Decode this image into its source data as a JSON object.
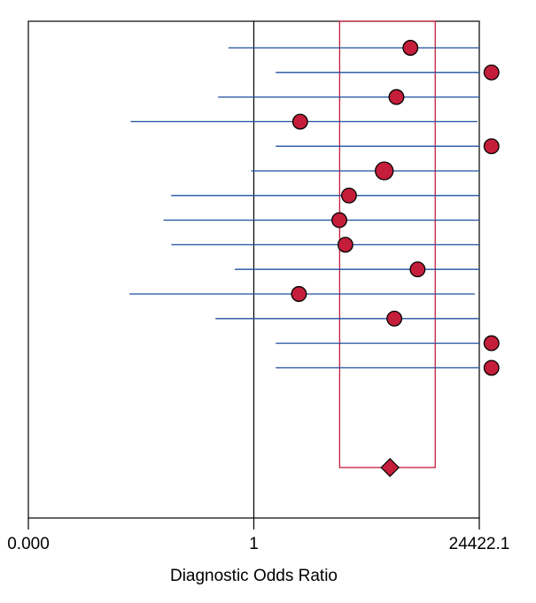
{
  "chart_data": {
    "type": "forest",
    "xlabel": "Diagnostic Odds Ratio",
    "x_scale": "log",
    "x_tick_labels": [
      "0.000",
      "1",
      "24422.1"
    ],
    "xlim_log10": [
      -4.3878,
      4.3878
    ],
    "reference_line_log10": 0,
    "studies": [
      {
        "estimate_log10": 3.047,
        "ci_log10": [
          -0.493,
          6.493
        ]
      },
      {
        "estimate_log10": 4.625,
        "ci_log10": [
          0.426,
          8.824
        ]
      },
      {
        "estimate_log10": 2.775,
        "ci_log10": [
          -0.697,
          6.182
        ]
      },
      {
        "estimate_log10": 0.902,
        "ci_log10": [
          -2.399,
          4.353
        ]
      },
      {
        "estimate_log10": 4.625,
        "ci_log10": [
          0.426,
          8.824
        ]
      },
      {
        "estimate_log10": 2.538,
        "ci_log10": [
          -0.051,
          5.098
        ]
      },
      {
        "estimate_log10": 1.852,
        "ci_log10": [
          -1.609,
          5.145
        ]
      },
      {
        "estimate_log10": 1.664,
        "ci_log10": [
          -1.757,
          5.004
        ]
      },
      {
        "estimate_log10": 1.782,
        "ci_log10": [
          -1.605,
          5.149
        ]
      },
      {
        "estimate_log10": 3.187,
        "ci_log10": [
          -0.369,
          6.734
        ]
      },
      {
        "estimate_log10": 0.878,
        "ci_log10": [
          -2.42,
          4.301
        ]
      },
      {
        "estimate_log10": 2.735,
        "ci_log10": [
          -0.747,
          6.076
        ]
      },
      {
        "estimate_log10": 4.625,
        "ci_log10": [
          0.426,
          8.824
        ]
      },
      {
        "estimate_log10": 4.625,
        "ci_log10": [
          0.426,
          8.824
        ]
      }
    ],
    "pooled": {
      "estimate_log10": 2.65,
      "ci_log10": [
        1.67,
        3.53
      ]
    },
    "colors": {
      "ci_line": "#1f4fa0",
      "marker_fill": "#c41e3a",
      "marker_stroke": "#000000",
      "pooled_band": "#c41e3a",
      "frame": "#000000"
    }
  }
}
